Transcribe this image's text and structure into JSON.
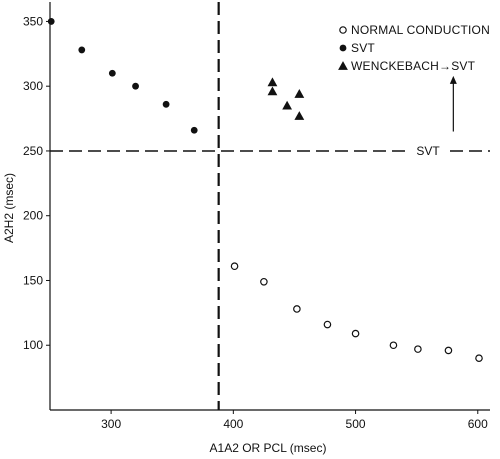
{
  "chart_data": {
    "type": "scatter",
    "xlabel": "A1A2 OR PCL (msec)",
    "ylabel": "A2H2 (msec)",
    "xlim": [
      250,
      610
    ],
    "ylim": [
      50,
      365
    ],
    "xticks": [
      300,
      400,
      500,
      600
    ],
    "yticks": [
      100,
      150,
      200,
      250,
      300,
      350
    ],
    "grid": false,
    "legend": "top-right",
    "series": [
      {
        "name": "NORMAL CONDUCTION",
        "marker": "open-circle",
        "points": [
          [
            401,
            161
          ],
          [
            425,
            149
          ],
          [
            452,
            128
          ],
          [
            477,
            116
          ],
          [
            500,
            109
          ],
          [
            531,
            100
          ],
          [
            551,
            97
          ],
          [
            576,
            96
          ],
          [
            601,
            90
          ]
        ]
      },
      {
        "name": "SVT",
        "marker": "filled-circle",
        "points": [
          [
            251,
            350
          ],
          [
            276,
            328
          ],
          [
            301,
            310
          ],
          [
            320,
            300
          ],
          [
            345,
            286
          ],
          [
            368,
            266
          ]
        ]
      },
      {
        "name": "WENCKEBACH→SVT",
        "marker": "filled-triangle",
        "points": [
          [
            432,
            303
          ],
          [
            432,
            296
          ],
          [
            444,
            285
          ],
          [
            454,
            294
          ],
          [
            454,
            277
          ]
        ]
      }
    ],
    "reference_lines": [
      {
        "orientation": "vertical",
        "value": 388,
        "style": "dashed"
      },
      {
        "orientation": "horizontal",
        "value": 250,
        "style": "dashed",
        "label": "SVT"
      }
    ],
    "annotation_arrow": {
      "x": 580,
      "from": 265,
      "to": 308
    }
  }
}
